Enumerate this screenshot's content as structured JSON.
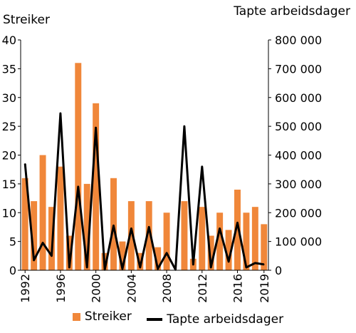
{
  "chart_data": {
    "type": "bar+line",
    "left_axis_label": "Streiker",
    "right_axis_label": "Tapte arbeidsdager",
    "x": [
      1992,
      1993,
      1994,
      1995,
      1996,
      1997,
      1998,
      1999,
      2000,
      2001,
      2002,
      2003,
      2004,
      2005,
      2006,
      2007,
      2008,
      2009,
      2010,
      2011,
      2012,
      2013,
      2014,
      2015,
      2016,
      2017,
      2018,
      2019
    ],
    "x_tick_labels": [
      "1992",
      "1996",
      "2000",
      "2004",
      "2008",
      "2012",
      "2016",
      "2019"
    ],
    "y_left_ticks": [
      "0",
      "5",
      "10",
      "15",
      "20",
      "25",
      "30",
      "35",
      "40"
    ],
    "y_right_ticks": [
      "0",
      "100 000",
      "200 000",
      "300 000",
      "400 000",
      "500 000",
      "600 000",
      "700 000",
      "800 000"
    ],
    "ylim_left": [
      0,
      40
    ],
    "ylim_right": [
      0,
      800000
    ],
    "series": [
      {
        "name": "Streiker",
        "type": "bar",
        "axis": "left",
        "color": "#f0873a",
        "values": [
          16,
          12,
          20,
          11,
          18,
          6,
          36,
          15,
          29,
          3,
          16,
          5,
          12,
          3,
          12,
          4,
          10,
          0,
          12,
          2,
          11,
          6,
          10,
          7,
          14,
          10,
          11,
          8
        ]
      },
      {
        "name": "Tapte arbeidsdager",
        "type": "line",
        "axis": "right",
        "color": "#000000",
        "values": [
          370000,
          35000,
          95000,
          50000,
          545000,
          10000,
          290000,
          10000,
          495000,
          2000,
          155000,
          5000,
          145000,
          10000,
          150000,
          5000,
          60000,
          2000,
          500000,
          20000,
          360000,
          10000,
          145000,
          30000,
          165000,
          10000,
          25000,
          20000
        ]
      }
    ],
    "grid": false,
    "legend": "bottom-center"
  }
}
